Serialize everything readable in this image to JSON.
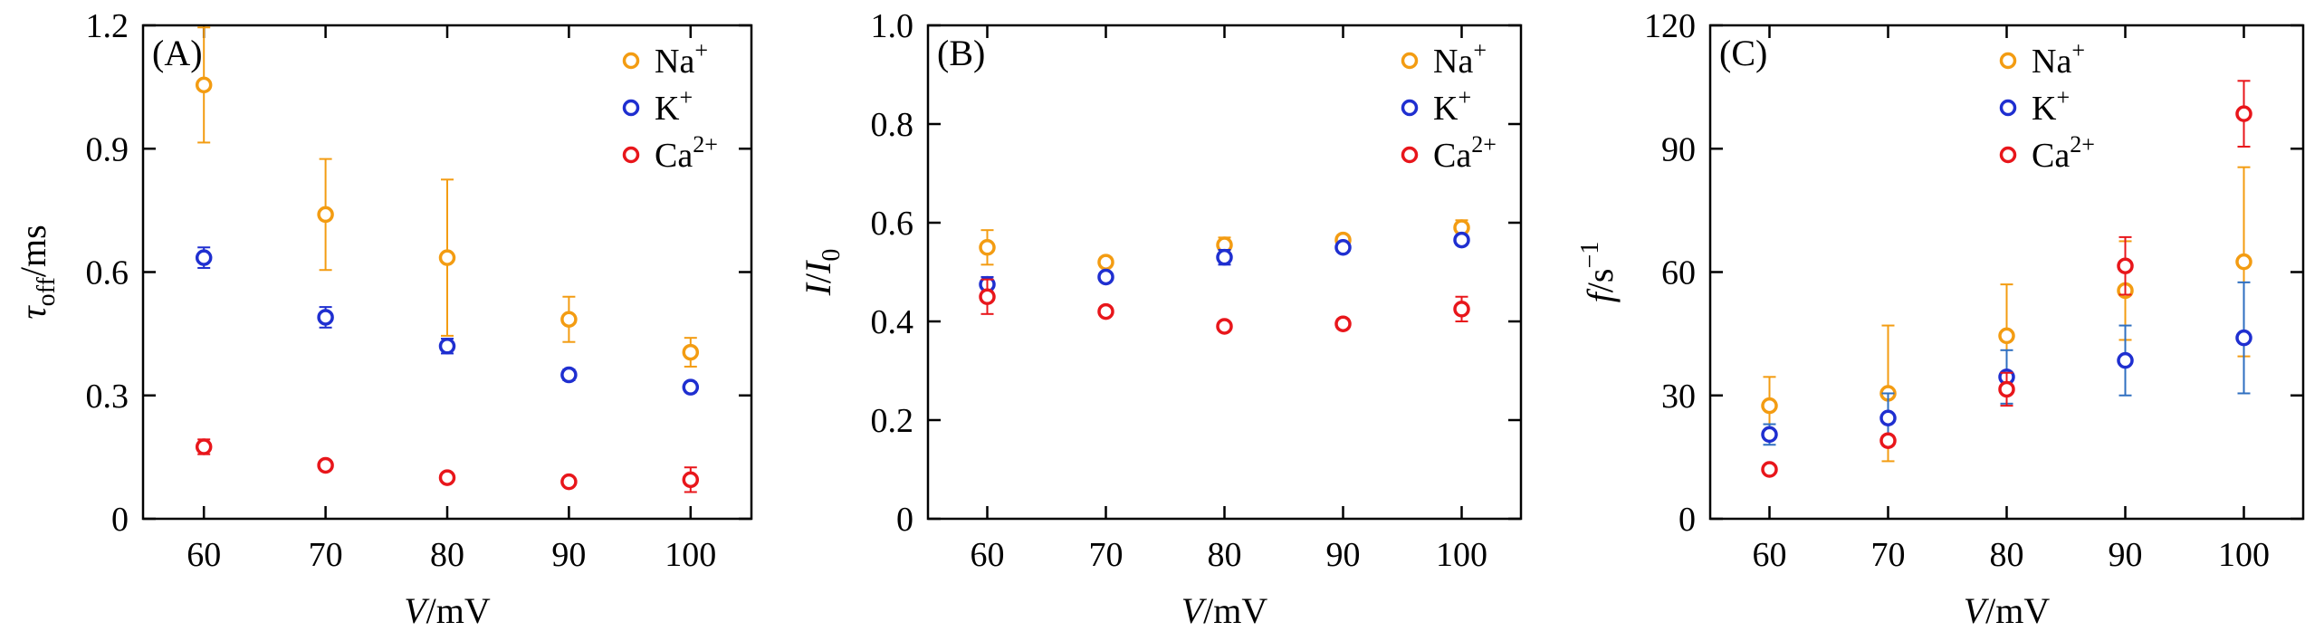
{
  "colors": {
    "Na": "#f39c12",
    "K": "#1f2fd0",
    "Ca": "#e8161b",
    "K_errorbar": "#2f6fc0",
    "axis": "#000000"
  },
  "chart_data": [
    {
      "type": "scatter",
      "panel_label": "(A)",
      "ylabel": {
        "main": "τ",
        "sub": "off",
        "rest": "/ms"
      },
      "xlabel": {
        "var": "V",
        "unit": "/mV"
      },
      "ylim": [
        0,
        1.2
      ],
      "yticks": [
        0,
        0.3,
        0.6,
        0.9,
        1.2
      ],
      "ytick_labels": [
        "0",
        "0.3",
        "0.6",
        "0.9",
        "1.2"
      ],
      "xlim": [
        55,
        105
      ],
      "xticks": [
        60,
        70,
        80,
        90,
        100
      ],
      "xtick_labels": [
        "60",
        "70",
        "80",
        "90",
        "100"
      ],
      "legend_position": "top-right",
      "series": [
        {
          "name": "Na",
          "legend": {
            "base": "Na",
            "sup": "+"
          },
          "color_key": "Na",
          "x": [
            60,
            70,
            80,
            90,
            100
          ],
          "y": [
            1.055,
            0.74,
            0.635,
            0.485,
            0.405
          ],
          "err": [
            0.14,
            0.135,
            0.19,
            0.055,
            0.035
          ]
        },
        {
          "name": "K",
          "legend": {
            "base": "K",
            "sup": "+"
          },
          "color_key": "K",
          "x": [
            60,
            70,
            80,
            90,
            100
          ],
          "y": [
            0.635,
            0.49,
            0.42,
            0.35,
            0.32
          ],
          "err": [
            0.025,
            0.025,
            0.018,
            0.013,
            0.012
          ]
        },
        {
          "name": "Ca",
          "legend": {
            "base": "Ca",
            "sup": "2+"
          },
          "color_key": "Ca",
          "x": [
            60,
            70,
            80,
            90,
            100
          ],
          "y": [
            0.175,
            0.13,
            0.1,
            0.09,
            0.095
          ],
          "err": [
            0.018,
            0.008,
            0.007,
            0.006,
            0.03
          ]
        }
      ]
    },
    {
      "type": "scatter",
      "panel_label": "(B)",
      "ylabel": {
        "main": "I",
        "sub": "",
        "rest": "/I",
        "sub2": "0"
      },
      "xlabel": {
        "var": "V",
        "unit": "/mV"
      },
      "ylim": [
        0,
        1.0
      ],
      "yticks": [
        0,
        0.2,
        0.4,
        0.6,
        0.8,
        1.0
      ],
      "ytick_labels": [
        "0",
        "0.2",
        "0.4",
        "0.6",
        "0.8",
        "1.0"
      ],
      "xlim": [
        55,
        105
      ],
      "xticks": [
        60,
        70,
        80,
        90,
        100
      ],
      "xtick_labels": [
        "60",
        "70",
        "80",
        "90",
        "100"
      ],
      "legend_position": "top-right",
      "series": [
        {
          "name": "Na",
          "legend": {
            "base": "Na",
            "sup": "+"
          },
          "color_key": "Na",
          "x": [
            60,
            70,
            80,
            90,
            100
          ],
          "y": [
            0.55,
            0.52,
            0.555,
            0.565,
            0.59
          ],
          "err": [
            0.035,
            0.01,
            0.015,
            0.01,
            0.015
          ]
        },
        {
          "name": "K",
          "legend": {
            "base": "K",
            "sup": "+"
          },
          "color_key": "K",
          "x": [
            60,
            70,
            80,
            90,
            100
          ],
          "y": [
            0.475,
            0.49,
            0.53,
            0.55,
            0.565
          ],
          "err": [
            0.015,
            0.008,
            0.015,
            0.008,
            0.01
          ]
        },
        {
          "name": "Ca",
          "legend": {
            "base": "Ca",
            "sup": "2+"
          },
          "color_key": "Ca",
          "x": [
            60,
            70,
            80,
            90,
            100
          ],
          "y": [
            0.45,
            0.42,
            0.39,
            0.395,
            0.425
          ],
          "err": [
            0.035,
            0.008,
            0.008,
            0.01,
            0.025
          ]
        }
      ]
    },
    {
      "type": "scatter",
      "panel_label": "(C)",
      "ylabel": {
        "main": "f",
        "sub": "",
        "rest": "/s",
        "sup": "−1"
      },
      "xlabel": {
        "var": "V",
        "unit": "/mV"
      },
      "ylim": [
        0,
        120
      ],
      "yticks": [
        0,
        30,
        60,
        90,
        120
      ],
      "ytick_labels": [
        "0",
        "30",
        "60",
        "90",
        "120"
      ],
      "xlim": [
        55,
        105
      ],
      "xticks": [
        60,
        70,
        80,
        90,
        100
      ],
      "xtick_labels": [
        "60",
        "70",
        "80",
        "90",
        "100"
      ],
      "legend_position": "top-center",
      "series": [
        {
          "name": "Na",
          "legend": {
            "base": "Na",
            "sup": "+"
          },
          "color_key": "Na",
          "x": [
            60,
            70,
            80,
            90,
            100
          ],
          "y": [
            27.5,
            30.5,
            44.5,
            55.5,
            62.5
          ],
          "err": [
            7,
            16.5,
            12.5,
            12,
            23
          ]
        },
        {
          "name": "K",
          "legend": {
            "base": "K",
            "sup": "+"
          },
          "color_key": "K",
          "x": [
            60,
            70,
            80,
            90,
            100
          ],
          "y": [
            20.5,
            24.5,
            34.5,
            38.5,
            44
          ],
          "err": [
            2.5,
            6,
            6.5,
            8.5,
            13.5
          ]
        },
        {
          "name": "Ca",
          "legend": {
            "base": "Ca",
            "sup": "2+"
          },
          "color_key": "Ca",
          "x": [
            60,
            70,
            80,
            90,
            100
          ],
          "y": [
            12,
            19,
            31.5,
            61.5,
            98.5
          ],
          "err": [
            0.8,
            1.2,
            4,
            7,
            8
          ]
        }
      ]
    }
  ]
}
